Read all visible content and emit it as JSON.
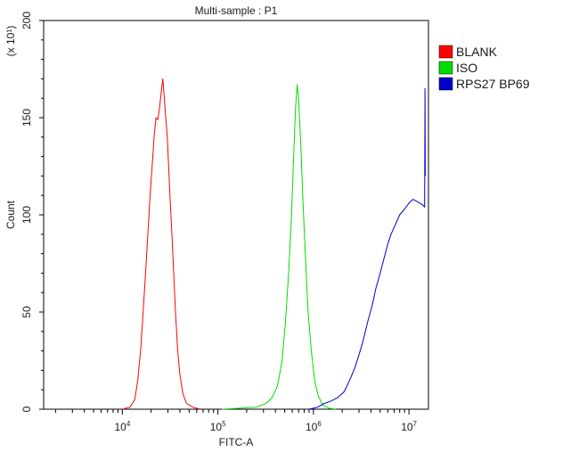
{
  "chart_data": {
    "type": "line",
    "title": "Multi-sample : P1",
    "xlabel": "FITC-A",
    "ylabel": "Count",
    "y_multiplier": "(x 10¹)",
    "x_scale": "log",
    "xlim": [
      1500,
      16000000
    ],
    "ylim": [
      0,
      200
    ],
    "x_ticks": [
      {
        "value": 10000,
        "base": "10",
        "exp": "4"
      },
      {
        "value": 100000,
        "base": "10",
        "exp": "5"
      },
      {
        "value": 1000000,
        "base": "10",
        "exp": "6"
      },
      {
        "value": 10000000,
        "base": "10",
        "exp": "7"
      }
    ],
    "y_ticks": [
      0,
      50,
      100,
      150,
      200
    ],
    "legend_position": "right",
    "series": [
      {
        "name": "BLANK",
        "color": "#ff0000",
        "points": [
          [
            10000,
            0
          ],
          [
            12000,
            1
          ],
          [
            13500,
            5
          ],
          [
            14500,
            15
          ],
          [
            15500,
            30
          ],
          [
            16500,
            50
          ],
          [
            17500,
            70
          ],
          [
            18500,
            90
          ],
          [
            19500,
            110
          ],
          [
            20500,
            125
          ],
          [
            21500,
            140
          ],
          [
            22500,
            150
          ],
          [
            23500,
            149
          ],
          [
            24500,
            155
          ],
          [
            25500,
            163
          ],
          [
            26500,
            170
          ],
          [
            27500,
            160
          ],
          [
            28500,
            150
          ],
          [
            29500,
            140
          ],
          [
            30500,
            125
          ],
          [
            31500,
            110
          ],
          [
            33000,
            90
          ],
          [
            34500,
            70
          ],
          [
            36000,
            50
          ],
          [
            38000,
            30
          ],
          [
            40000,
            18
          ],
          [
            43000,
            8
          ],
          [
            47000,
            3
          ],
          [
            55000,
            1
          ],
          [
            65000,
            0
          ]
        ]
      },
      {
        "name": "ISO",
        "color": "#00dd00",
        "points": [
          [
            110000,
            0
          ],
          [
            170000,
            0.5
          ],
          [
            250000,
            1
          ],
          [
            320000,
            3
          ],
          [
            370000,
            6
          ],
          [
            420000,
            12
          ],
          [
            470000,
            25
          ],
          [
            510000,
            45
          ],
          [
            550000,
            70
          ],
          [
            590000,
            100
          ],
          [
            620000,
            130
          ],
          [
            650000,
            155
          ],
          [
            675000,
            167
          ],
          [
            700000,
            160
          ],
          [
            740000,
            135
          ],
          [
            780000,
            105
          ],
          [
            830000,
            75
          ],
          [
            880000,
            50
          ],
          [
            950000,
            30
          ],
          [
            1030000,
            15
          ],
          [
            1120000,
            7
          ],
          [
            1250000,
            2
          ],
          [
            1450000,
            0.5
          ],
          [
            1700000,
            0
          ]
        ]
      },
      {
        "name": "RPS27 BP69",
        "color": "#0000cc",
        "points": [
          [
            900000,
            0
          ],
          [
            1100000,
            1
          ],
          [
            1300000,
            3
          ],
          [
            1500000,
            4
          ],
          [
            1800000,
            6
          ],
          [
            2100000,
            9
          ],
          [
            2400000,
            15
          ],
          [
            2700000,
            21
          ],
          [
            3000000,
            28
          ],
          [
            3300000,
            35
          ],
          [
            3700000,
            45
          ],
          [
            4100000,
            53
          ],
          [
            4500000,
            62
          ],
          [
            5000000,
            70
          ],
          [
            5500000,
            78
          ],
          [
            6000000,
            85
          ],
          [
            6500000,
            90
          ],
          [
            7200000,
            95
          ],
          [
            8000000,
            100
          ],
          [
            9000000,
            103
          ],
          [
            10000000,
            106
          ],
          [
            11000000,
            108
          ],
          [
            12000000,
            107
          ],
          [
            13000000,
            106
          ],
          [
            14000000,
            105
          ],
          [
            14600000,
            104
          ],
          [
            14700000,
            165
          ],
          [
            14800000,
            120
          ]
        ]
      }
    ]
  }
}
